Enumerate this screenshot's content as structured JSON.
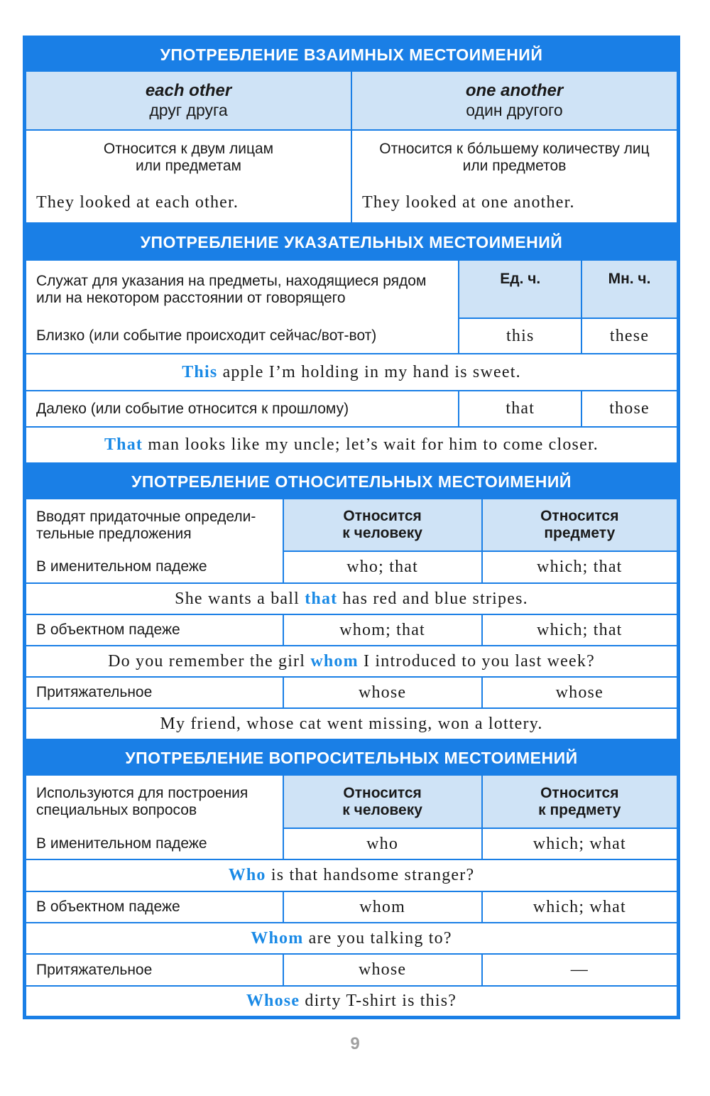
{
  "reciprocal": {
    "title": "УПОТРЕБЛЕНИЕ ВЗАИМНЫХ МЕСТОИМЕНИЙ",
    "cols": [
      {
        "term": "each other",
        "translation": "друг друга",
        "desc1": "Относится к двум лицам",
        "desc2": "или предметам",
        "example": "They looked at each other."
      },
      {
        "term": "one another",
        "translation": "один другого",
        "desc1": "Относится к бо́льшему количеству лиц",
        "desc2": "или предметов",
        "example": "They looked at one another."
      }
    ]
  },
  "demonstrative": {
    "title": "УПОТРЕБЛЕНИЕ УКАЗАТЕЛЬНЫХ МЕСТОИМЕНИЙ",
    "intro": "Служат для указания на предметы, находящиеся рядом или на некотором расстоянии от говорящего",
    "col_singular": "Ед. ч.",
    "col_plural": "Мн. ч.",
    "rows": [
      {
        "label": "Близко (или событие происходит сейчас/вот-вот)",
        "singular": "this",
        "plural": "these",
        "ex_pre": "",
        "ex_hl": "This",
        "ex_post": " apple I’m holding in my hand is sweet."
      },
      {
        "label": "Далеко (или событие относится к прошлому)",
        "singular": "that",
        "plural": "those",
        "ex_pre": "",
        "ex_hl": "That",
        "ex_post": " man looks like my uncle; let’s wait for him to come closer."
      }
    ]
  },
  "relative": {
    "title": "УПОТРЕБЛЕНИЕ ОТНОСИТЕЛЬНЫХ МЕСТОИМЕНИЙ",
    "intro": "Вводят придаточные определи-тельные предложения",
    "col_person_1": "Относится",
    "col_person_2": "к человеку",
    "col_thing_1": "Относится",
    "col_thing_2": "предмету",
    "rows": [
      {
        "label": "В именительном падеже",
        "person": "who; that",
        "thing": "which; that",
        "ex_pre": "She wants a ball ",
        "ex_hl": "that",
        "ex_post": " has red and blue stripes."
      },
      {
        "label": "В объектном падеже",
        "person": "whom; that",
        "thing": "which; that",
        "ex_pre": "Do you remember the girl ",
        "ex_hl": "whom",
        "ex_post": " I introduced to you last week?"
      },
      {
        "label": "Притяжательное",
        "person": "whose",
        "thing": "whose",
        "ex_pre": "My friend, whose cat went missing, won a lottery.",
        "ex_hl": "",
        "ex_post": ""
      }
    ]
  },
  "interrogative": {
    "title": "УПОТРЕБЛЕНИЕ ВОПРОСИТЕЛЬНЫХ МЕСТОИМЕНИЙ",
    "intro": "Используются для построения специальных вопросов",
    "col_person_1": "Относится",
    "col_person_2": "к человеку",
    "col_thing_1": "Относится",
    "col_thing_2": "к предмету",
    "rows": [
      {
        "label": "В именительном падеже",
        "person": "who",
        "thing": "which; what",
        "ex_pre": "",
        "ex_hl": "Who",
        "ex_post": " is that handsome stranger?"
      },
      {
        "label": "В объектном падеже",
        "person": "whom",
        "thing": "which; what",
        "ex_pre": "",
        "ex_hl": "Whom",
        "ex_post": " are you talking to?"
      },
      {
        "label": "Притяжательное",
        "person": "whose",
        "thing": "—",
        "ex_pre": "",
        "ex_hl": "Whose",
        "ex_post": " dirty T-shirt is this?"
      }
    ]
  },
  "page_number": "9",
  "colors": {
    "accent": "#1a7fe6",
    "light": "#cfe3f6",
    "highlight": "#1a8ae6"
  }
}
